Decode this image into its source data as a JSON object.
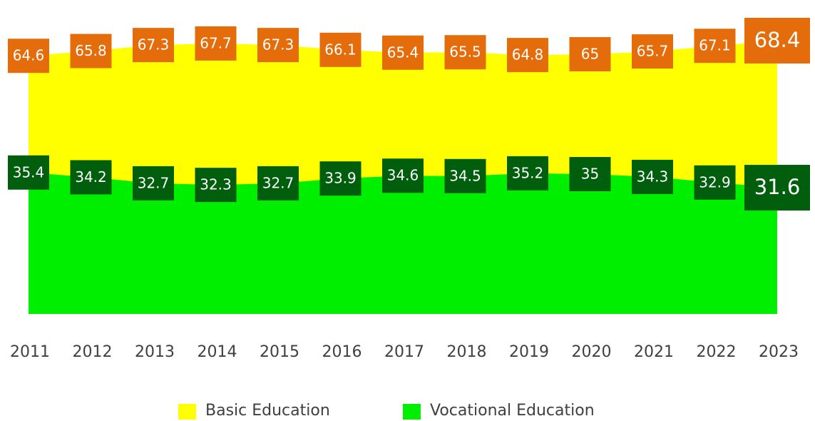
{
  "chart_data": {
    "type": "area",
    "categories": [
      "2011",
      "2012",
      "2013",
      "2014",
      "2015",
      "2016",
      "2017",
      "2018",
      "2019",
      "2020",
      "2021",
      "2022",
      "2023"
    ],
    "series": [
      {
        "name": "Basic Education",
        "color": "#ffff00",
        "label_color": "#e46c0a",
        "values": [
          64.6,
          65.8,
          67.3,
          67.7,
          67.3,
          66.1,
          65.4,
          65.5,
          64.8,
          65.0,
          65.7,
          67.1,
          68.4
        ]
      },
      {
        "name": "Vocational Education",
        "color": "#00ee00",
        "label_color": "#005e0c",
        "values": [
          35.4,
          34.2,
          32.7,
          32.3,
          32.7,
          33.9,
          34.6,
          34.5,
          35.2,
          35.0,
          34.3,
          32.9,
          31.6
        ]
      }
    ],
    "ylim": [
      0,
      70
    ],
    "legend": "bottom"
  }
}
